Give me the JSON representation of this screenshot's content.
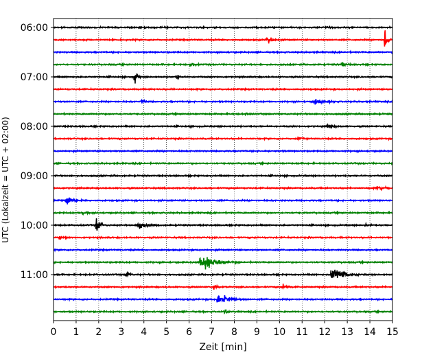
{
  "chart_data": {
    "type": "line",
    "title": "",
    "xlabel": "Zeit  [min]",
    "ylabel": "UTC (Lokalzeit = UTC + 02:00)",
    "xlim": [
      0,
      15
    ],
    "x_ticks": [
      "0",
      "1",
      "2",
      "3",
      "4",
      "5",
      "6",
      "7",
      "8",
      "9",
      "10",
      "11",
      "12",
      "13",
      "14",
      "15"
    ],
    "y_ticks": [
      "06:00",
      "07:00",
      "08:00",
      "09:00",
      "10:00",
      "11:00"
    ],
    "grid": "vertical dotted",
    "trace_start": "06:00",
    "trace_interval_min": 15,
    "trace_count": 24,
    "trace_colors": [
      "#000000",
      "#ff0000",
      "#0000ff",
      "#008000"
    ],
    "events": [
      {
        "trace": 1,
        "x": 9.45,
        "amp": 0.35,
        "dur": 0.6
      },
      {
        "trace": 1,
        "x": 14.65,
        "amp": 1.0,
        "dur": 0.3
      },
      {
        "trace": 3,
        "x": 6.05,
        "amp": 0.3,
        "dur": 0.4
      },
      {
        "trace": 3,
        "x": 12.75,
        "amp": 0.3,
        "dur": 0.5
      },
      {
        "trace": 4,
        "x": 3.6,
        "amp": 0.9,
        "dur": 0.25
      },
      {
        "trace": 4,
        "x": 5.45,
        "amp": 0.2,
        "dur": 0.3
      },
      {
        "trace": 6,
        "x": 3.9,
        "amp": 0.25,
        "dur": 0.3
      },
      {
        "trace": 6,
        "x": 11.55,
        "amp": 0.25,
        "dur": 1.0
      },
      {
        "trace": 7,
        "x": 8.5,
        "amp": 0.2,
        "dur": 0.3
      },
      {
        "trace": 8,
        "x": 12.15,
        "amp": 0.3,
        "dur": 0.6
      },
      {
        "trace": 9,
        "x": 10.8,
        "amp": 0.15,
        "dur": 0.5
      },
      {
        "trace": 13,
        "x": 14.3,
        "amp": 0.25,
        "dur": 1.2
      },
      {
        "trace": 14,
        "x": 0.55,
        "amp": 0.4,
        "dur": 0.8
      },
      {
        "trace": 15,
        "x": 1.25,
        "amp": 0.2,
        "dur": 0.4
      },
      {
        "trace": 16,
        "x": 1.9,
        "amp": 0.85,
        "dur": 0.4
      },
      {
        "trace": 16,
        "x": 3.75,
        "amp": 0.45,
        "dur": 1.0
      },
      {
        "trace": 16,
        "x": 13.8,
        "amp": 0.2,
        "dur": 0.4
      },
      {
        "trace": 17,
        "x": 0.25,
        "amp": 0.2,
        "dur": 0.4
      },
      {
        "trace": 19,
        "x": 6.5,
        "amp": 0.6,
        "dur": 1.8
      },
      {
        "trace": 20,
        "x": 12.3,
        "amp": 0.8,
        "dur": 1.2
      },
      {
        "trace": 20,
        "x": 3.2,
        "amp": 0.2,
        "dur": 0.5
      },
      {
        "trace": 21,
        "x": 10.15,
        "amp": 0.3,
        "dur": 0.5
      },
      {
        "trace": 21,
        "x": 7.1,
        "amp": 0.2,
        "dur": 0.5
      },
      {
        "trace": 22,
        "x": 7.25,
        "amp": 0.55,
        "dur": 1.3
      },
      {
        "trace": 23,
        "x": 7.55,
        "amp": 0.3,
        "dur": 0.4
      }
    ]
  }
}
